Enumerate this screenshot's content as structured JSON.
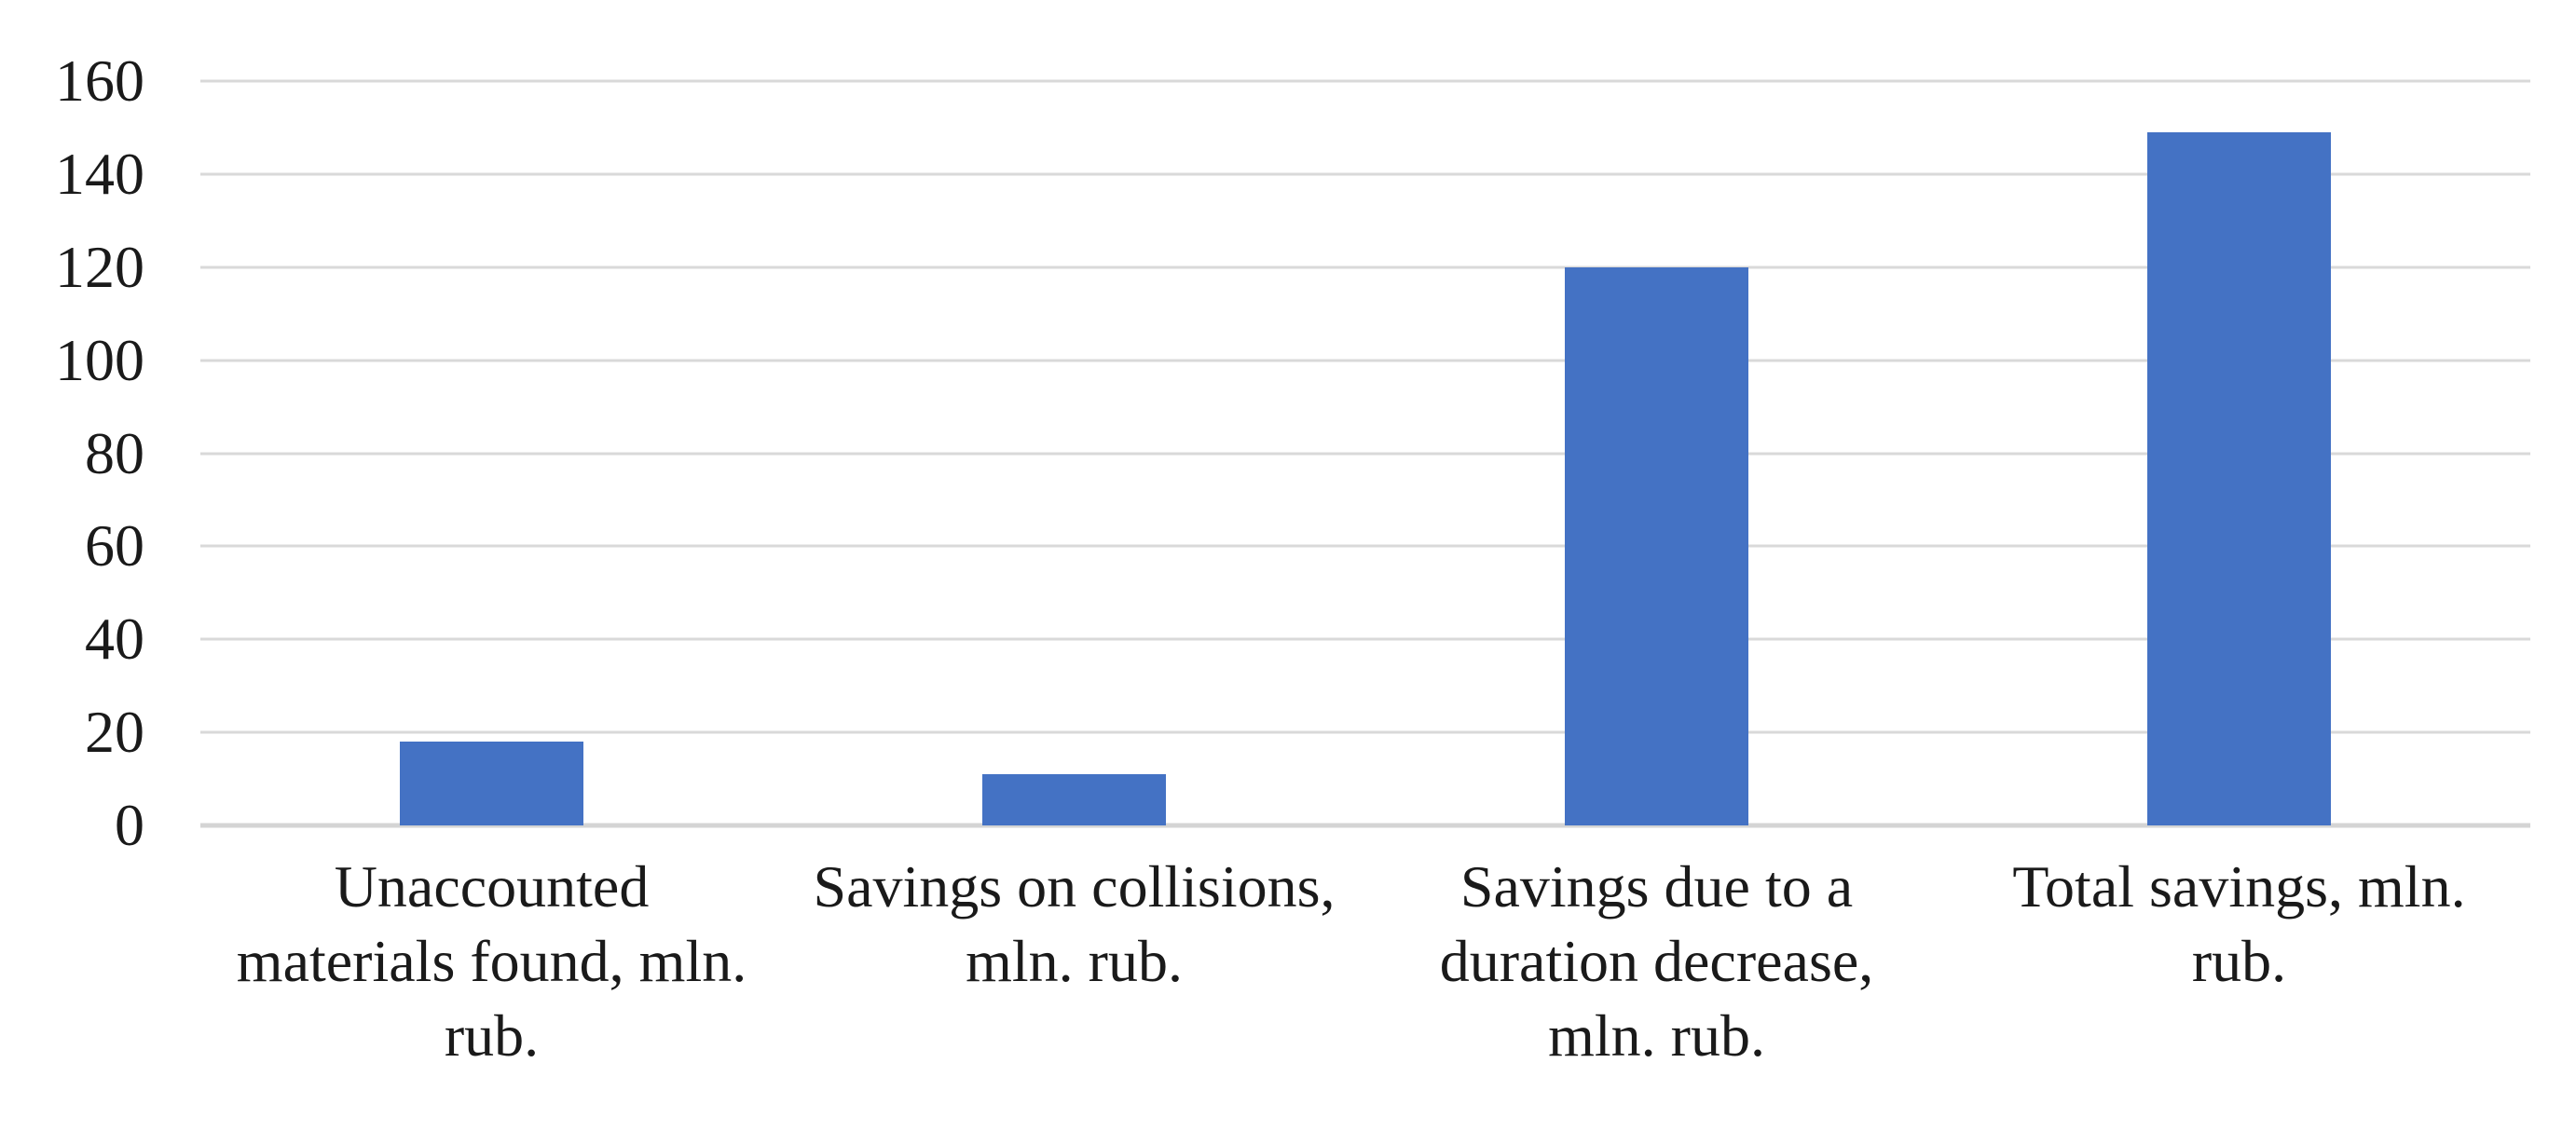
{
  "chart_data": {
    "type": "bar",
    "title": "",
    "xlabel": "",
    "ylabel": "",
    "categories": [
      "Unaccounted materials found, mln. rub.",
      "Savings on collisions, mln. rub.",
      "Savings due to a duration decrease, mln. rub.",
      "Total savings, mln. rub."
    ],
    "x_tick_labels": [
      "Unaccounted\nmaterials found, mln.\nrub.",
      "Savings on collisions,\nmln. rub.",
      "Savings due to a\nduration decrease,\nmln. rub.",
      "Total savings, mln.\nrub."
    ],
    "values": [
      18,
      11,
      120,
      149
    ],
    "ylim": [
      0,
      160
    ],
    "yticks": [
      0,
      20,
      40,
      60,
      80,
      100,
      120,
      140,
      160
    ],
    "grid": true,
    "legend": false,
    "legend_position": "none",
    "bar_color": "#4472C4",
    "gridline_color": "#D9D9D9",
    "axis_line_color": "#D4D4D4",
    "text_color": "#1A1A1A",
    "background_color": "#FFFFFF"
  }
}
